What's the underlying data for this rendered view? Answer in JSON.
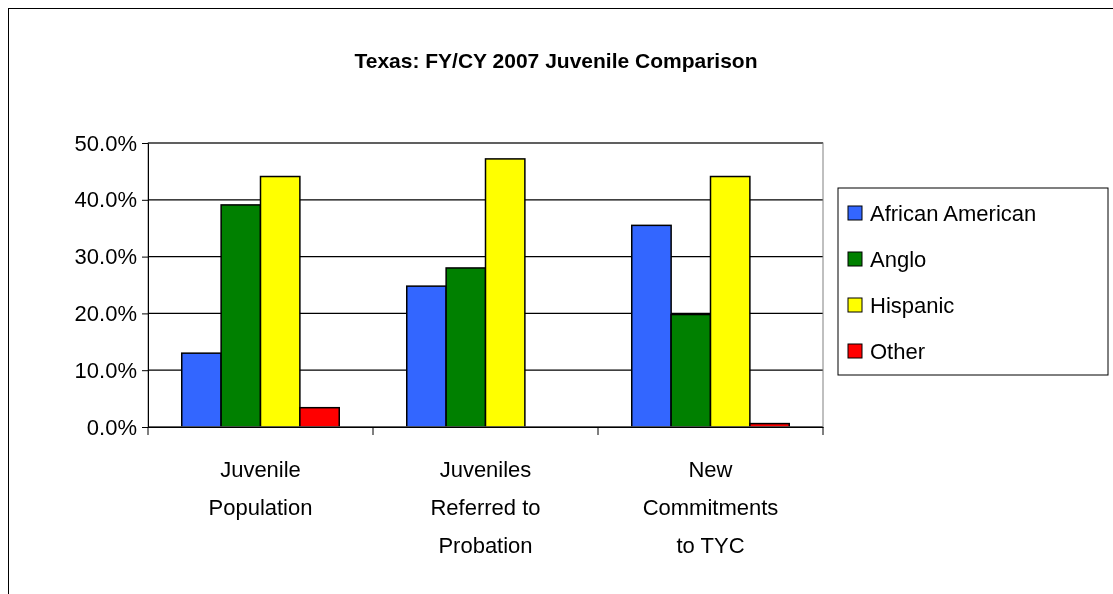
{
  "chart_data": {
    "type": "bar",
    "title": "Texas: FY/CY 2007 Juvenile Comparison",
    "categories": [
      "Juvenile Population",
      "Juveniles Referred to Probation",
      "New Commitments to TYC"
    ],
    "series": [
      {
        "name": "African American",
        "color": "#3366ff",
        "values": [
          13.0,
          24.8,
          35.5
        ]
      },
      {
        "name": "Anglo",
        "color": "#008000",
        "values": [
          39.1,
          28.0,
          19.8
        ]
      },
      {
        "name": "Hispanic",
        "color": "#ffff00",
        "values": [
          44.1,
          47.2,
          44.1
        ]
      },
      {
        "name": "Other",
        "color": "#ff0000",
        "values": [
          3.4,
          0,
          0.6
        ]
      }
    ],
    "ylim": [
      0,
      50
    ],
    "yticks": [
      {
        "value": 0,
        "label": "0.0%"
      },
      {
        "value": 10,
        "label": "10.0%"
      },
      {
        "value": 20,
        "label": "20.0%"
      },
      {
        "value": 30,
        "label": "30.0%"
      },
      {
        "value": 40,
        "label": "40.0%"
      },
      {
        "value": 50,
        "label": "50.0%"
      }
    ],
    "grid": "y",
    "legend": "right"
  }
}
